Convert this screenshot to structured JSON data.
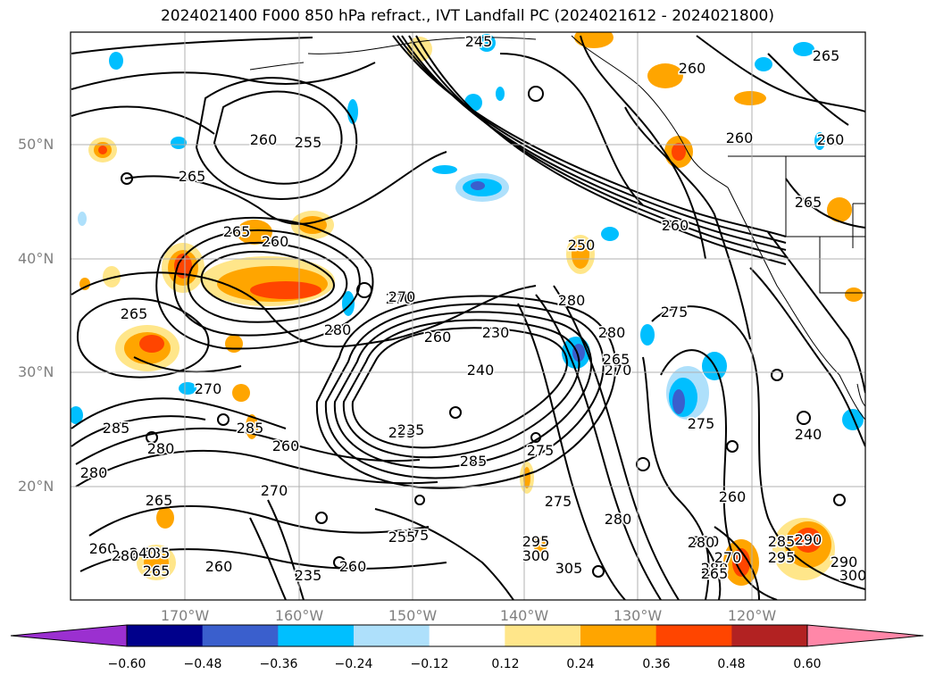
{
  "title": "2024021400 F000 850 hPa refract., IVT Landfall PC (2024021612 - 2024021800)",
  "map": {
    "lat_labels": [
      "50°N",
      "40°N",
      "30°N",
      "20°N"
    ],
    "lon_labels": [
      "170°W",
      "160°W",
      "150°W",
      "140°W",
      "130°W",
      "120°W"
    ],
    "contour_labels": [
      "245",
      "265",
      "260",
      "260",
      "255",
      "265",
      "260",
      "260",
      "265",
      "260",
      "250",
      "280",
      "265",
      "260",
      "270",
      "270",
      "265",
      "280",
      "260",
      "275",
      "270",
      "240",
      "230",
      "235",
      "265",
      "280",
      "275",
      "285",
      "280",
      "240",
      "270",
      "285",
      "280",
      "260",
      "265",
      "270",
      "285",
      "280",
      "275",
      "260",
      "265",
      "260",
      "280",
      "285",
      "275",
      "290",
      "280",
      "295",
      "255",
      "300",
      "305",
      "235",
      "260",
      "240",
      "290",
      "300",
      "280",
      "280",
      "295",
      "285",
      "270",
      "265",
      "260",
      "275",
      "235"
    ],
    "fill_colors": {
      "orange_light": "#ffe68a",
      "orange": "#ffa500",
      "red_orange": "#ff4500",
      "blue_light": "#aee0fb",
      "blue": "#00bfff",
      "blue_dark": "#3a5fcd"
    }
  },
  "colorbar": {
    "tick_labels": [
      "−0.60",
      "−0.48",
      "−0.36",
      "−0.24",
      "−0.12",
      "0.12",
      "0.24",
      "0.36",
      "0.48",
      "0.60"
    ],
    "colors": [
      "#9b30d0",
      "#00008b",
      "#3a5fcd",
      "#00bfff",
      "#aee0fb",
      "#ffffff",
      "#ffe68a",
      "#ffa500",
      "#ff4500",
      "#b22222",
      "#ff87a8"
    ]
  }
}
